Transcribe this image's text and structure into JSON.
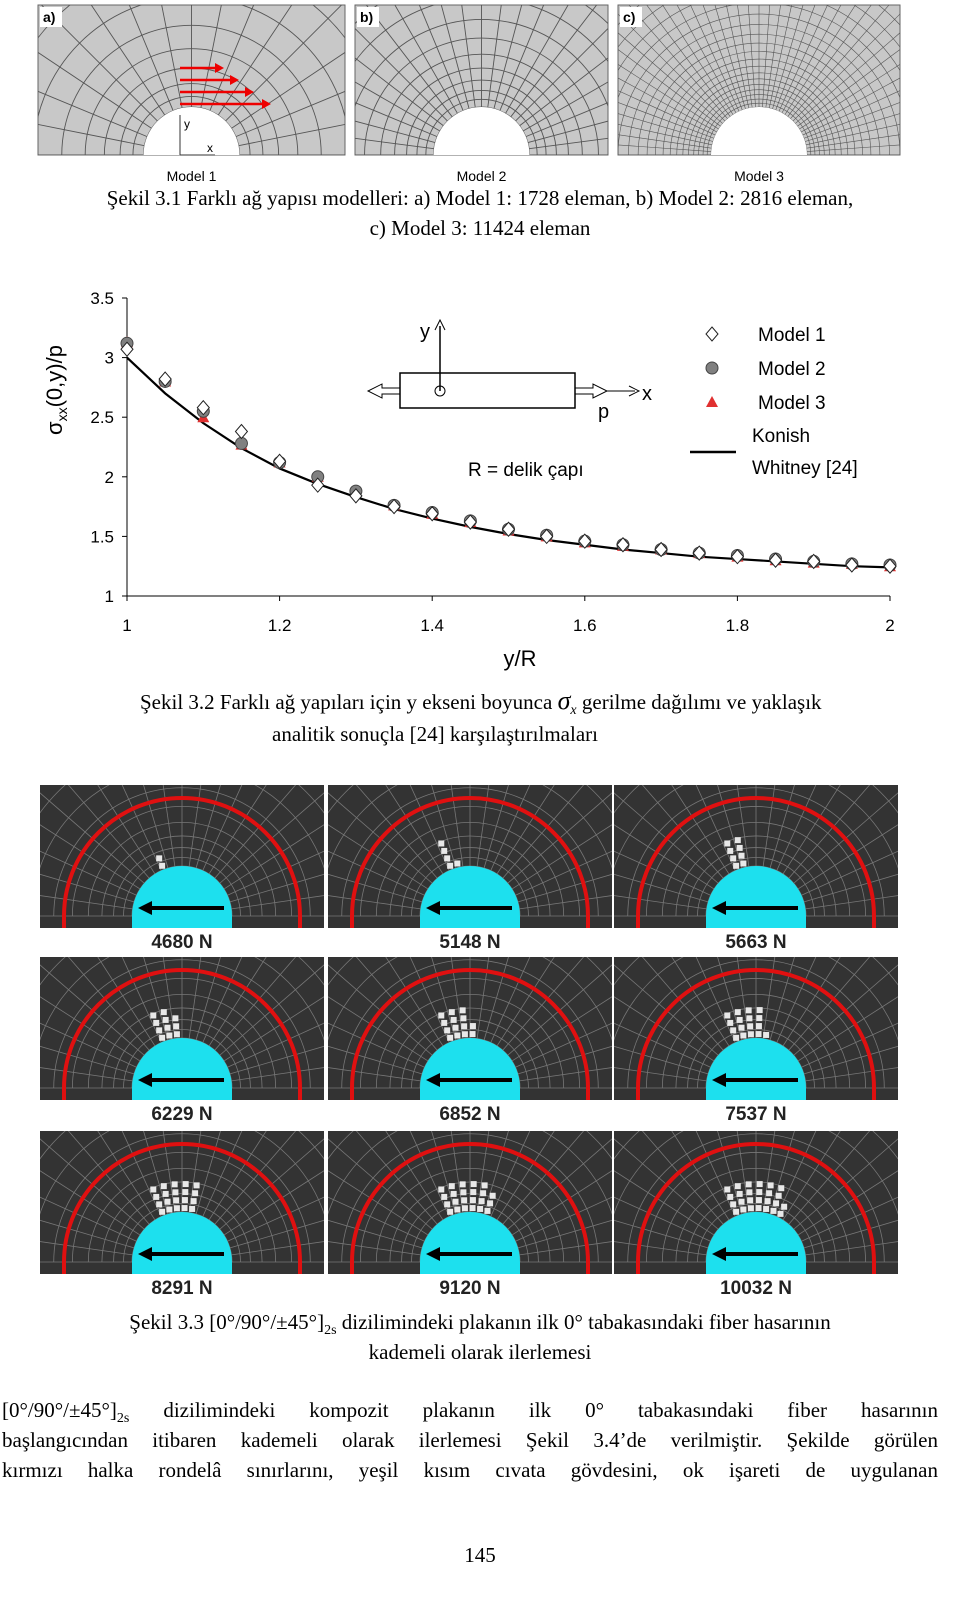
{
  "figure_3_1": {
    "panel_labels": [
      "a)",
      "b)",
      "c)"
    ],
    "model_labels": [
      "Model 1",
      "Model 2",
      "Model 3"
    ],
    "axis_labels": [
      "y",
      "x"
    ],
    "caption": {
      "line1": "Şekil 3.1 Farklı ağ yapısı modelleri: a) Model 1: 1728 eleman, b) Model 2: 2816 eleman,",
      "line2": "c) Model 3: 11424 eleman"
    }
  },
  "chart_data": {
    "type": "scatter",
    "xlabel": "y/R",
    "ylabel": {
      "symbol": "σ",
      "subscript": "xx",
      "rest": "(0,y)/p"
    },
    "x": [
      1,
      1.05,
      1.1,
      1.15,
      1.2,
      1.25,
      1.3,
      1.35,
      1.4,
      1.45,
      1.5,
      1.55,
      1.6,
      1.65,
      1.7,
      1.75,
      1.8,
      1.85,
      1.9,
      1.95,
      2
    ],
    "xlim": [
      1,
      2
    ],
    "ylim": [
      1,
      3.5
    ],
    "xticks": [
      1,
      1.2,
      1.4,
      1.6,
      1.8,
      2
    ],
    "yticks": [
      1,
      1.5,
      2,
      2.5,
      3,
      3.5
    ],
    "grid": false,
    "series": [
      {
        "name": "Model 1",
        "marker": "diamond",
        "color": "#ffffff",
        "values": [
          3.07,
          2.82,
          2.58,
          2.38,
          2.13,
          1.93,
          1.84,
          1.75,
          1.69,
          1.62,
          1.56,
          1.5,
          1.46,
          1.43,
          1.39,
          1.36,
          1.33,
          1.3,
          1.29,
          1.26,
          1.25
        ]
      },
      {
        "name": "Model 2",
        "marker": "circle",
        "color": "#808080",
        "values": [
          3.12,
          2.8,
          2.55,
          2.28,
          2.12,
          2.0,
          1.88,
          1.76,
          1.7,
          1.63,
          1.56,
          1.51,
          1.46,
          1.43,
          1.39,
          1.36,
          1.34,
          1.31,
          1.29,
          1.27,
          1.26
        ]
      },
      {
        "name": "Model 3",
        "marker": "triangle",
        "color": "#e03030",
        "values": [
          3.13,
          2.8,
          2.5,
          2.27,
          2.12,
          2.0,
          1.88,
          1.76,
          1.69,
          1.62,
          1.55,
          1.5,
          1.45,
          1.42,
          1.39,
          1.36,
          1.33,
          1.3,
          1.28,
          1.27,
          1.25
        ]
      },
      {
        "name": "Konish Whitney [24]",
        "marker": "line",
        "color": "#000000",
        "values": [
          3.0,
          2.7,
          2.45,
          2.24,
          2.07,
          1.94,
          1.83,
          1.73,
          1.65,
          1.58,
          1.52,
          1.47,
          1.43,
          1.39,
          1.36,
          1.33,
          1.31,
          1.29,
          1.27,
          1.25,
          1.24
        ]
      }
    ],
    "annotations": {
      "y": "y",
      "x": "x",
      "p": "p",
      "radius": "R = delik çapı"
    }
  },
  "caption_3_2": {
    "line1": "Şekil 3.2 Farklı ağ yapıları için y ekseni boyunca",
    "symbol": "σ",
    "subscript": "x",
    "line1_end": "gerilme dağılımı ve yaklaşık",
    "line2": "analitik sonuçla [24] karşılaştırılmaları"
  },
  "figure_3_3": {
    "panels": [
      "4680 N",
      "5148 N",
      "5663 N",
      "6229 N",
      "6852 N",
      "7537 N",
      "8291 N",
      "9120 N",
      "10032 N"
    ],
    "caption": {
      "line1_start": "Şekil 3.3 [0°/90°/±45°]",
      "subscript": "2s",
      "line1_end": "dizilimindeki plakanın ilk 0° tabakasındaki fiber hasarının",
      "line2": "kademeli olarak ilerlemesi"
    }
  },
  "paragraph": {
    "line1_start": "[0°/90°/±45°]",
    "subscript": "2s",
    "line1_end": "dizilimindeki kompozit plakanın ilk 0° tabakasındaki fiber hasarının",
    "line2": "başlangıcından itibaren kademeli olarak ilerlemesi Şekil 3.4’de verilmiştir. Şekilde görülen",
    "line3": "kırmızı halka rondelâ sınırlarını, yeşil kısım cıvata gövdesini, ok işareti de uygulanan"
  },
  "page_number": "145"
}
